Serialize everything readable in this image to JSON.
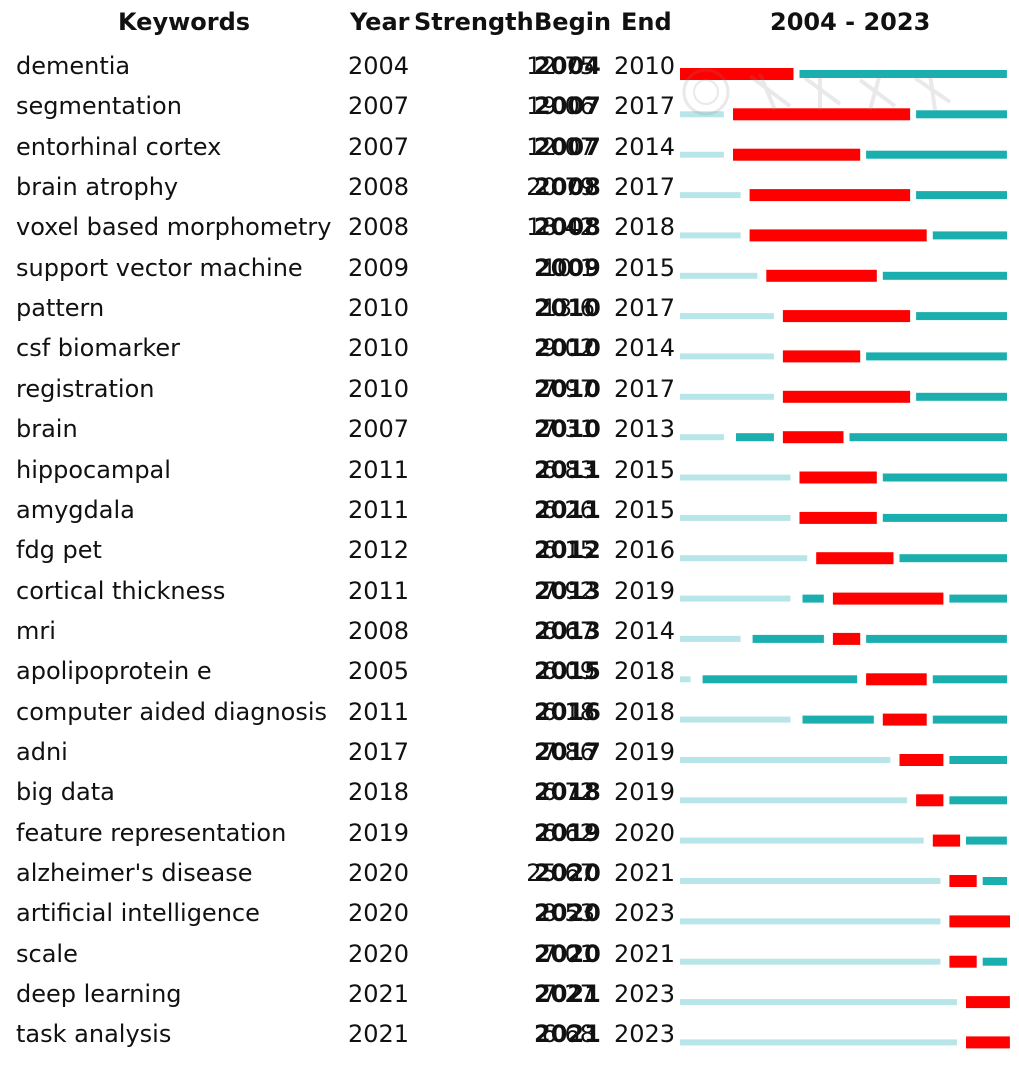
{
  "headers": {
    "keywords": "Keywords",
    "year": "Year",
    "strength": "Strength",
    "begin": "Begin",
    "end": "End",
    "range": "2004 - 2023"
  },
  "chart_data": {
    "type": "table",
    "x_range": [
      2004,
      2023
    ],
    "colors": {
      "burst": "#ff0000",
      "active": "#1aaeae",
      "inactive": "#b8e6e8"
    },
    "rows": [
      {
        "keyword": "dementia",
        "year": 2004,
        "strength": "12.75",
        "begin": 2004,
        "end": 2010
      },
      {
        "keyword": "segmentation",
        "year": 2007,
        "strength": "19.06",
        "begin": 2007,
        "end": 2017
      },
      {
        "keyword": "entorhinal cortex",
        "year": 2007,
        "strength": "12.07",
        "begin": 2007,
        "end": 2014
      },
      {
        "keyword": "brain atrophy",
        "year": 2008,
        "strength": "20.79",
        "begin": 2008,
        "end": 2017
      },
      {
        "keyword": "voxel based morphometry",
        "year": 2008,
        "strength": "18.42",
        "begin": 2008,
        "end": 2018
      },
      {
        "keyword": "support vector machine",
        "year": 2009,
        "strength": "10.1",
        "begin": 2009,
        "end": 2015
      },
      {
        "keyword": "pattern",
        "year": 2010,
        "strength": "13.6",
        "begin": 2010,
        "end": 2017
      },
      {
        "keyword": "csf biomarker",
        "year": 2010,
        "strength": "9.02",
        "begin": 2010,
        "end": 2014
      },
      {
        "keyword": "registration",
        "year": 2010,
        "strength": "7.97",
        "begin": 2010,
        "end": 2017
      },
      {
        "keyword": "brain",
        "year": 2007,
        "strength": "7.31",
        "begin": 2010,
        "end": 2013
      },
      {
        "keyword": "hippocampal",
        "year": 2011,
        "strength": "6.83",
        "begin": 2011,
        "end": 2015
      },
      {
        "keyword": "amygdala",
        "year": 2011,
        "strength": "6.26",
        "begin": 2011,
        "end": 2015
      },
      {
        "keyword": "fdg pet",
        "year": 2012,
        "strength": "6.15",
        "begin": 2012,
        "end": 2016
      },
      {
        "keyword": "cortical thickness",
        "year": 2011,
        "strength": "7.92",
        "begin": 2013,
        "end": 2019
      },
      {
        "keyword": "mri",
        "year": 2008,
        "strength": "6.67",
        "begin": 2013,
        "end": 2014
      },
      {
        "keyword": "apolipoprotein e",
        "year": 2005,
        "strength": "6.09",
        "begin": 2015,
        "end": 2018
      },
      {
        "keyword": "computer aided diagnosis",
        "year": 2011,
        "strength": "6.18",
        "begin": 2016,
        "end": 2018
      },
      {
        "keyword": "adni",
        "year": 2017,
        "strength": "7.86",
        "begin": 2017,
        "end": 2019
      },
      {
        "keyword": "big data",
        "year": 2018,
        "strength": "6.72",
        "begin": 2018,
        "end": 2019
      },
      {
        "keyword": "feature representation",
        "year": 2019,
        "strength": "6.62",
        "begin": 2019,
        "end": 2020
      },
      {
        "keyword": "alzheimer's disease",
        "year": 2020,
        "strength": "25.67",
        "begin": 2020,
        "end": 2021
      },
      {
        "keyword": "artificial intelligence",
        "year": 2020,
        "strength": "8.53",
        "begin": 2020,
        "end": 2023
      },
      {
        "keyword": "scale",
        "year": 2020,
        "strength": "7.01",
        "begin": 2020,
        "end": 2021
      },
      {
        "keyword": "deep learning",
        "year": 2021,
        "strength": "7.27",
        "begin": 2021,
        "end": 2023
      },
      {
        "keyword": "task analysis",
        "year": 2021,
        "strength": "6.68",
        "begin": 2021,
        "end": 2023
      }
    ]
  }
}
